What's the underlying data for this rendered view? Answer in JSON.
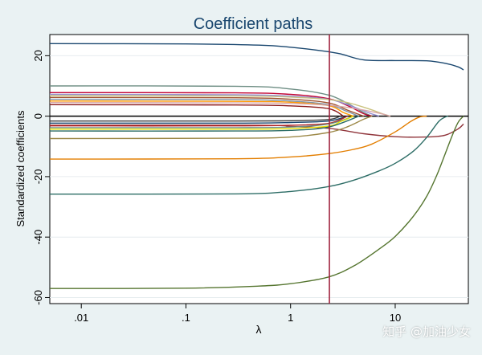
{
  "chart_data": {
    "type": "line",
    "title": "Coefficient paths",
    "xlabel": "λ",
    "ylabel": "Standardized coefficients",
    "xscale": "log",
    "xlim": [
      0.005,
      50
    ],
    "ylim": [
      -62,
      27
    ],
    "xticks": [
      0.01,
      0.1,
      1,
      10
    ],
    "xtick_labels": [
      ".01",
      ".1",
      "1",
      "10"
    ],
    "yticks": [
      -60,
      -40,
      -20,
      0,
      20
    ],
    "ytick_labels": [
      "-60",
      "-40",
      "-20",
      "0",
      "20"
    ],
    "grid": true,
    "legend": "none",
    "vline": {
      "x": 2.35,
      "color": "#a0243f"
    },
    "zero_line": true,
    "series": [
      {
        "color": "#1a476f",
        "x": [
          0.005,
          0.1,
          0.5,
          1,
          2,
          3,
          5,
          10,
          20,
          30,
          40,
          45
        ],
        "y": [
          24,
          23.9,
          23.5,
          22.8,
          21.6,
          20.6,
          18.6,
          18.4,
          18.3,
          17.5,
          16.3,
          15.3
        ]
      },
      {
        "color": "#90353b",
        "x": [
          0.005,
          0.5,
          1,
          2.3,
          5,
          10,
          20,
          30,
          40,
          45
        ],
        "y": [
          -3,
          -3,
          -3.4,
          -4,
          -5.8,
          -6.8,
          -6.9,
          -6.3,
          -4.2,
          -2.6
        ]
      },
      {
        "color": "#55752f",
        "x": [
          0.005,
          0.1,
          0.5,
          1,
          2.3,
          4,
          7,
          10,
          15,
          20,
          25,
          30,
          35,
          40,
          45
        ],
        "y": [
          -57,
          -56.9,
          -56.2,
          -55.4,
          -53.2,
          -49.6,
          -44,
          -39.8,
          -33,
          -26.5,
          -19.5,
          -12.5,
          -6.5,
          -2,
          0
        ]
      },
      {
        "color": "#e37e00",
        "x": [
          0.005,
          0.3,
          1,
          2.3,
          4,
          6,
          10,
          14,
          17,
          20
        ],
        "y": [
          -14.2,
          -14.1,
          -13.5,
          -12.4,
          -11,
          -9.2,
          -5.2,
          -1.8,
          -0.3,
          0
        ]
      },
      {
        "color": "#2d6d66",
        "x": [
          0.005,
          0.3,
          1,
          2.3,
          4,
          7,
          10,
          15,
          20,
          26,
          30,
          32
        ],
        "y": [
          -25.8,
          -25.7,
          -24.9,
          -23.3,
          -21.2,
          -18.1,
          -15.6,
          -11.5,
          -7,
          -1.8,
          -0.3,
          0
        ]
      },
      {
        "color": "#6e8e84",
        "x": [
          0.005,
          0.3,
          1,
          2.3,
          3.5,
          5,
          6
        ],
        "y": [
          10,
          9.9,
          9,
          7,
          4.2,
          1.2,
          0
        ]
      },
      {
        "color": "#c10534",
        "x": [
          0.005,
          0.3,
          1,
          2.3,
          3.5,
          5,
          6
        ],
        "y": [
          7.8,
          7.7,
          7.2,
          5.8,
          3.5,
          0.8,
          0
        ]
      },
      {
        "color": "#938dd2",
        "x": [
          0.005,
          0.3,
          1,
          2.3,
          3.5,
          5.5,
          7
        ],
        "y": [
          7.2,
          7.1,
          6.6,
          5.6,
          3.8,
          1.2,
          0
        ]
      },
      {
        "color": "#cac27e",
        "x": [
          0.005,
          0.3,
          1,
          2.3,
          3.5,
          5.5,
          8,
          9
        ],
        "y": [
          6.8,
          6.7,
          6.3,
          5.5,
          4.5,
          2.5,
          0.5,
          0
        ]
      },
      {
        "color": "#a0522d",
        "x": [
          0.005,
          0.3,
          1,
          2.3,
          3.5,
          5
        ],
        "y": [
          6.2,
          6.1,
          5.6,
          4.4,
          2,
          0
        ]
      },
      {
        "color": "#7b92a8",
        "x": [
          0.005,
          0.3,
          1,
          2.3,
          3.5,
          4.5
        ],
        "y": [
          5.6,
          5.5,
          5,
          3.8,
          1.5,
          0
        ]
      },
      {
        "color": "#ff9900",
        "x": [
          0.005,
          0.3,
          1,
          2.3,
          3.2,
          4
        ],
        "y": [
          5,
          4.9,
          4.6,
          3.5,
          1.2,
          0
        ]
      },
      {
        "color": "#d8a6a6",
        "x": [
          0.005,
          0.3,
          1,
          2.3,
          4,
          7,
          9
        ],
        "y": [
          4.5,
          4.4,
          4.2,
          3.6,
          2.6,
          1,
          0
        ]
      },
      {
        "color": "#8b1a1a",
        "x": [
          0.005,
          0.3,
          1,
          2.3,
          3.2
        ],
        "y": [
          3.8,
          3.7,
          3.4,
          2.5,
          0
        ]
      },
      {
        "color": "#3d3d3d",
        "x": [
          0.005,
          0.3,
          1,
          2.3,
          3
        ],
        "y": [
          -1.6,
          -1.6,
          -1.5,
          -1.1,
          0
        ]
      },
      {
        "color": "#1a476f",
        "x": [
          0.005,
          0.3,
          1,
          2.3,
          3.5
        ],
        "y": [
          -2.3,
          -2.3,
          -2.1,
          -1.6,
          0
        ]
      },
      {
        "color": "#b22222",
        "x": [
          0.005,
          0.3,
          1,
          2.3,
          3.5
        ],
        "y": [
          -3.2,
          -3.2,
          -3,
          -2.4,
          0
        ]
      },
      {
        "color": "#6e8e84",
        "x": [
          0.005,
          0.3,
          1,
          2.3,
          4
        ],
        "y": [
          -3.8,
          -3.8,
          -3.6,
          -2.6,
          0
        ]
      },
      {
        "color": "#e8e000",
        "x": [
          0.005,
          0.3,
          1,
          2.3,
          3,
          4
        ],
        "y": [
          -4.3,
          -4.3,
          -4.1,
          -3.3,
          -1.8,
          0
        ]
      },
      {
        "color": "#2d6d66",
        "x": [
          0.005,
          0.3,
          1,
          2.3,
          4.5
        ],
        "y": [
          -4.9,
          -4.9,
          -4.7,
          -3.6,
          0
        ]
      },
      {
        "color": "#9c8847",
        "x": [
          0.005,
          0.3,
          1,
          2.3,
          3.5,
          5,
          6
        ],
        "y": [
          -7.4,
          -7.3,
          -6.9,
          -5.4,
          -3.5,
          -1,
          0
        ]
      }
    ]
  },
  "watermark": "知乎 @加油少女"
}
